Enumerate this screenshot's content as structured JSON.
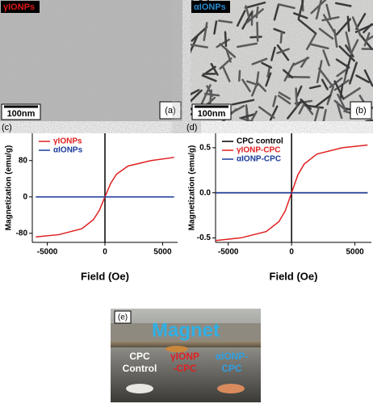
{
  "panels": {
    "a": {
      "sample_label": "γIONPs",
      "scale_bar": "100nm",
      "panel_label": "(a)"
    },
    "b": {
      "sample_label": "αIONPs",
      "scale_bar": "100nm",
      "panel_label": "(b)"
    },
    "e": {
      "panel_label": "(e)",
      "magnet": "Magnet",
      "samples": [
        [
          "CPC",
          "Control"
        ],
        [
          "γIONP",
          "-CPC"
        ],
        [
          "αIONP-",
          "CPC"
        ]
      ]
    }
  },
  "chart_data": [
    {
      "type": "line",
      "panel_label": "(c)",
      "x_label": "Field (Oe)",
      "y_label": "Magnetization (emu/g)",
      "x": [
        -6000,
        -4000,
        -2000,
        -1000,
        -500,
        0,
        500,
        1000,
        2000,
        4000,
        6000
      ],
      "series": [
        {
          "name": "γIONPs",
          "color": "#e02020",
          "values": [
            -88,
            -83,
            -70,
            -50,
            -30,
            0,
            30,
            50,
            68,
            80,
            87
          ]
        },
        {
          "name": "αIONPs",
          "color": "#1a3a9a",
          "values": [
            0,
            0,
            0,
            0,
            0,
            0,
            0,
            0,
            0,
            0,
            0
          ]
        }
      ],
      "xlim": [
        -6300,
        6300
      ],
      "xticks": [
        -5000,
        0,
        5000
      ],
      "ylim": [
        -100,
        140
      ],
      "yticks": [
        -80,
        0,
        80
      ],
      "legend": "upper left"
    },
    {
      "type": "line",
      "panel_label": "(d)",
      "x_label": "Field (Oe)",
      "y_label": "Magnetization (emu/g)",
      "x": [
        -6000,
        -4000,
        -2000,
        -1000,
        -500,
        0,
        500,
        1000,
        2000,
        4000,
        6000
      ],
      "series": [
        {
          "name": "CPC control",
          "color": "#000000",
          "values": [
            0,
            0,
            0,
            0,
            0,
            0,
            0,
            0,
            0,
            0,
            0
          ]
        },
        {
          "name": "γIONP-CPC",
          "color": "#e02020",
          "values": [
            -0.53,
            -0.5,
            -0.43,
            -0.32,
            -0.2,
            0,
            0.2,
            0.32,
            0.43,
            0.5,
            0.53
          ]
        },
        {
          "name": "αIONP-CPC",
          "color": "#1a3a9a",
          "values": [
            0,
            0,
            0,
            0,
            0,
            0,
            0,
            0,
            0,
            0,
            0
          ]
        }
      ],
      "xlim": [
        -6000,
        6300
      ],
      "xticks": [
        -5000,
        0,
        5000
      ],
      "ylim": [
        -0.55,
        0.66
      ],
      "yticks": [
        -0.5,
        {
          "value": 0,
          "label": "0.0"
        },
        0.5
      ],
      "legend": "upper left"
    }
  ]
}
